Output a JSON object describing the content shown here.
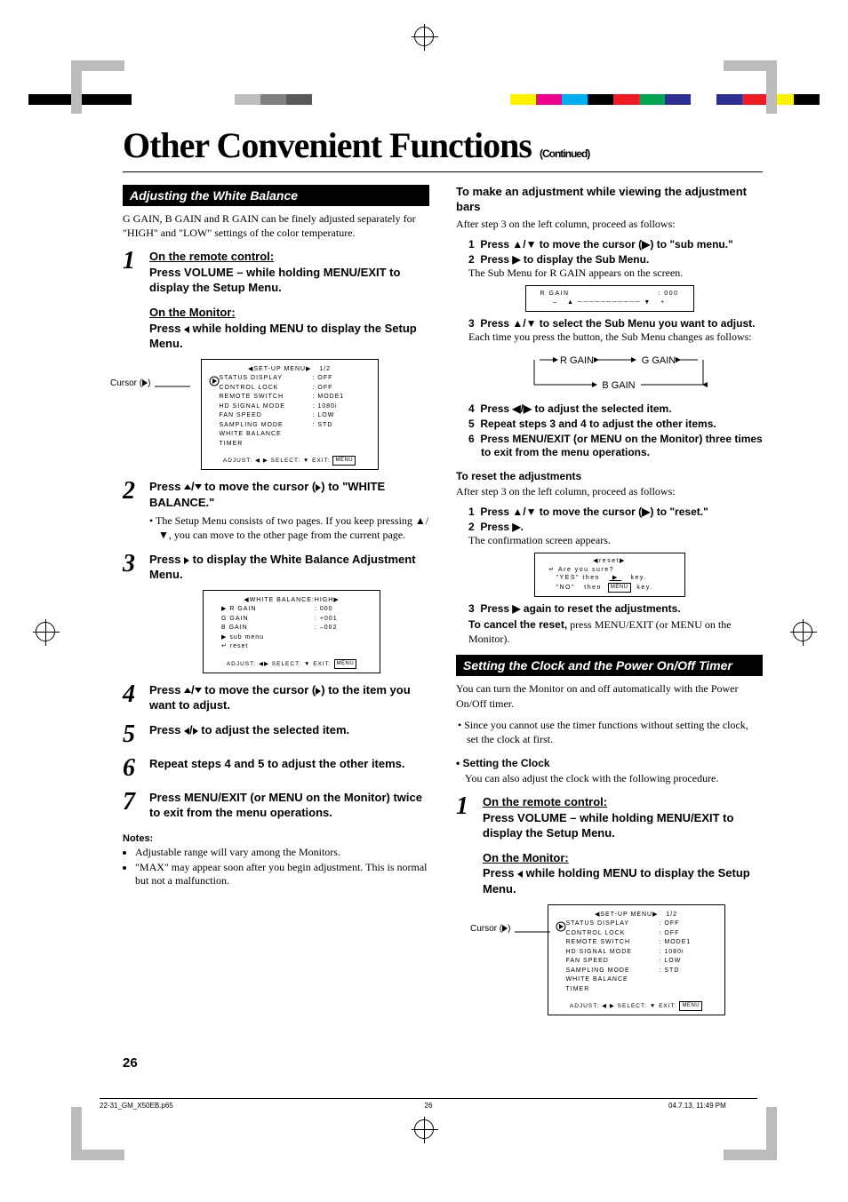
{
  "registration_colors_left": [
    "#000000",
    "#000000",
    "#000000",
    "#000000",
    "#ffffff",
    "#ffffff",
    "#ffffff",
    "#ffffff",
    "#bfbfbf",
    "#808080",
    "#595959"
  ],
  "registration_colors_right": [
    "#fff200",
    "#ec008c",
    "#00aeef",
    "#000000",
    "#ed1c24",
    "#00a651",
    "#2e3192",
    "#ffffff",
    "#2e3192",
    "#ed1c24",
    "#fff200",
    "#000000"
  ],
  "title": "Other Convenient Functions",
  "continued": "(Continued)",
  "section1_title": "Adjusting the White Balance",
  "section1_intro": "G GAIN, B GAIN and R GAIN can be finely adjusted separately for \"HIGH\" and \"LOW\" settings of the color temperature.",
  "step1_remote_u": "On the remote control:",
  "step1_remote": "Press VOLUME – while holding MENU/EXIT to display the Setup Menu.",
  "step1_mon_u": "On the Monitor:",
  "step1_mon": "Press ◀ while holding MENU to display the Setup Menu.",
  "cursor_label": "Cursor (▶)",
  "osd1": {
    "title": "SET-UP MENU",
    "page": "1/2",
    "rows": [
      {
        "l": "STATUS DISPLAY",
        "v": ": OFF",
        "cursor": true
      },
      {
        "l": "CONTROL LOCK",
        "v": ": OFF"
      },
      {
        "l": "REMOTE SWITCH",
        "v": ": MODE1"
      },
      {
        "l": "HD SIGNAL MODE",
        "v": ": 1080i"
      },
      {
        "l": "FAN SPEED",
        "v": ": LOW"
      },
      {
        "l": "SAMPLING MODE",
        "v": ": STD"
      },
      {
        "l": "WHITE BALANCE",
        "v": ""
      },
      {
        "l": "TIMER",
        "v": ""
      }
    ],
    "foot": "ADJUST: ◀ ▶ SELECT: ▼  EXIT: MENU"
  },
  "step2": "Press ▲/▼ to move the cursor (▶) to \"WHITE BALANCE.\"",
  "step2_sub": "• The Setup Menu consists of two pages. If you keep pressing ▲/▼, you can move to the other page from the current page.",
  "step3": "Press ▶ to display the White Balance Adjustment Menu.",
  "osd2": {
    "title": "WHITE BALANCE:HIGH",
    "rows": [
      {
        "l": "R GAIN",
        "v": ":  000",
        "cursor": true,
        "tri": true
      },
      {
        "l": "G GAIN",
        "v": ": +001"
      },
      {
        "l": "B GAIN",
        "v": ": –002"
      },
      {
        "l": "sub menu",
        "v": "",
        "pre": "▶"
      },
      {
        "l": "reset",
        "v": "",
        "pre": "↵"
      }
    ],
    "foot": "ADJUST: ◀▶ SELECT: ▼  EXIT: MENU"
  },
  "step4": "Press ▲/▼ to move the cursor (▶) to the item you want to adjust.",
  "step5": "Press ◀/▶ to adjust the selected item.",
  "step6": "Repeat steps 4 and 5 to adjust the other items.",
  "step7": "Press MENU/EXIT (or MENU on the Monitor) twice to exit from the menu operations.",
  "notes_label": "Notes:",
  "notes": [
    "Adjustable range will vary among the Monitors.",
    "\"MAX\" may appear soon after you begin adjustment. This is normal but not a malfunction."
  ],
  "col2_h1": "To make an adjustment while viewing the adjustment bars",
  "col2_p1": "After step 3 on the left column, proceed as follows:",
  "col2_list1": [
    {
      "n": "1",
      "b": "Press ▲/▼ to move the cursor (▶) to \"sub menu.\""
    },
    {
      "n": "2",
      "b": "Press ▶ to display the Sub Menu.",
      "s": "The Sub Menu for R GAIN appears on the screen."
    }
  ],
  "rgain_osd": {
    "l": "R GAIN",
    "v": ": 000",
    "bar": "–   ▲ ━━━━━━━  ▼   +"
  },
  "col2_list2": [
    {
      "n": "3",
      "b": "Press ▲/▼ to select the Sub Menu you want to adjust.",
      "s": "Each time you press the button, the Sub Menu changes as follows:"
    }
  ],
  "cycle": {
    "r": "R GAIN",
    "g": "G GAIN",
    "b": "B GAIN"
  },
  "col2_list3": [
    {
      "n": "4",
      "b": "Press ◀/▶ to adjust the selected item."
    },
    {
      "n": "5",
      "b": "Repeat steps 3 and 4 to adjust the other items."
    },
    {
      "n": "6",
      "b": "Press MENU/EXIT (or MENU on the Monitor) three times to exit from the menu operations."
    }
  ],
  "reset_h": "To reset the adjustments",
  "reset_p": "After step 3 on the left column, proceed as follows:",
  "reset_list1": [
    {
      "n": "1",
      "b": "Press ▲/▼ to move the cursor (▶) to \"reset.\""
    },
    {
      "n": "2",
      "b": "Press ▶.",
      "s": "The confirmation screen appears."
    }
  ],
  "reset_osd": {
    "title": "reset",
    "l1": "Are you sure?",
    "l2": "\"YES\" then    ▶    key.",
    "l3": "\"NO\"  then  MENU  key."
  },
  "reset_list2": [
    {
      "n": "3",
      "b": "Press ▶ again to reset the adjustments."
    }
  ],
  "reset_cancel": "To cancel the reset, press MENU/EXIT (or MENU on the Monitor).",
  "reset_cancel_b": "To cancel the reset,",
  "section2_title": "Setting the Clock and the Power On/Off Timer",
  "section2_p": "You can turn the Monitor on and off automatically with the Power On/Off timer.",
  "section2_bullet": "Since you cannot use the timer functions without setting the clock, set the clock at first.",
  "setting_clock_h": "• Setting the Clock",
  "setting_clock_p": "You can also adjust the clock with the following procedure.",
  "page_num": "26",
  "footer_l": "22-31_GM_X50EB.p65",
  "footer_c": "26",
  "footer_r": "04.7.13, 11:49 PM"
}
